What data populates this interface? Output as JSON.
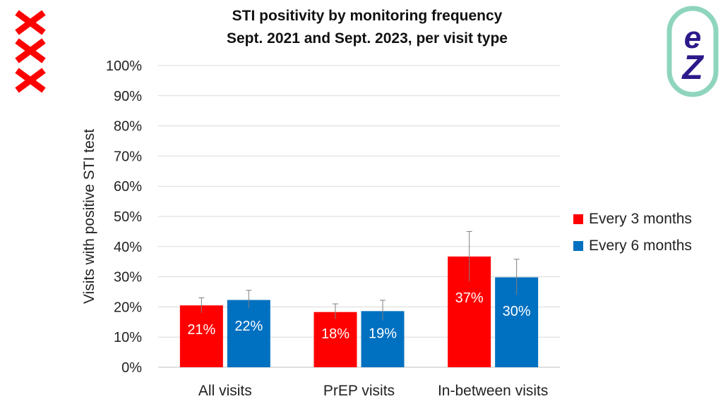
{
  "colors": {
    "series1": "#ff0000",
    "series2": "#0070c0",
    "grid": "#d9d9d9",
    "logo_teal": "#8fd5be",
    "logo_navy": "#2b1a8a"
  },
  "icons": {
    "left_logo": "amsterdam-xxx-logo-icon",
    "right_logo": "ez-logo-icon"
  },
  "chart_data": {
    "type": "bar",
    "title": "STI positivity by monitoring frequency",
    "subtitle": "Sept. 2021 and Sept. 2023, per visit type",
    "xlabel": "",
    "ylabel": "Visits with positive STI test",
    "ylim": [
      0,
      100
    ],
    "yticks": [
      "0%",
      "10%",
      "20%",
      "30%",
      "40%",
      "50%",
      "60%",
      "70%",
      "80%",
      "90%",
      "100%"
    ],
    "categories": [
      "All visits",
      "PrEP visits",
      "In-between visits"
    ],
    "grid": true,
    "legend_position": "right",
    "series": [
      {
        "name": "Every 3 months",
        "values": [
          20.5,
          18.3,
          36.7
        ],
        "labels": [
          "21%",
          "18%",
          "37%"
        ],
        "error": [
          [
            18,
            23
          ],
          [
            16,
            21
          ],
          [
            28.5,
            45
          ]
        ]
      },
      {
        "name": "Every 6 months",
        "values": [
          22.3,
          18.6,
          29.8
        ],
        "labels": [
          "22%",
          "19%",
          "30%"
        ],
        "error": [
          [
            19.5,
            25.5
          ],
          [
            15.5,
            22.2
          ],
          [
            24,
            35.8
          ]
        ]
      }
    ]
  }
}
